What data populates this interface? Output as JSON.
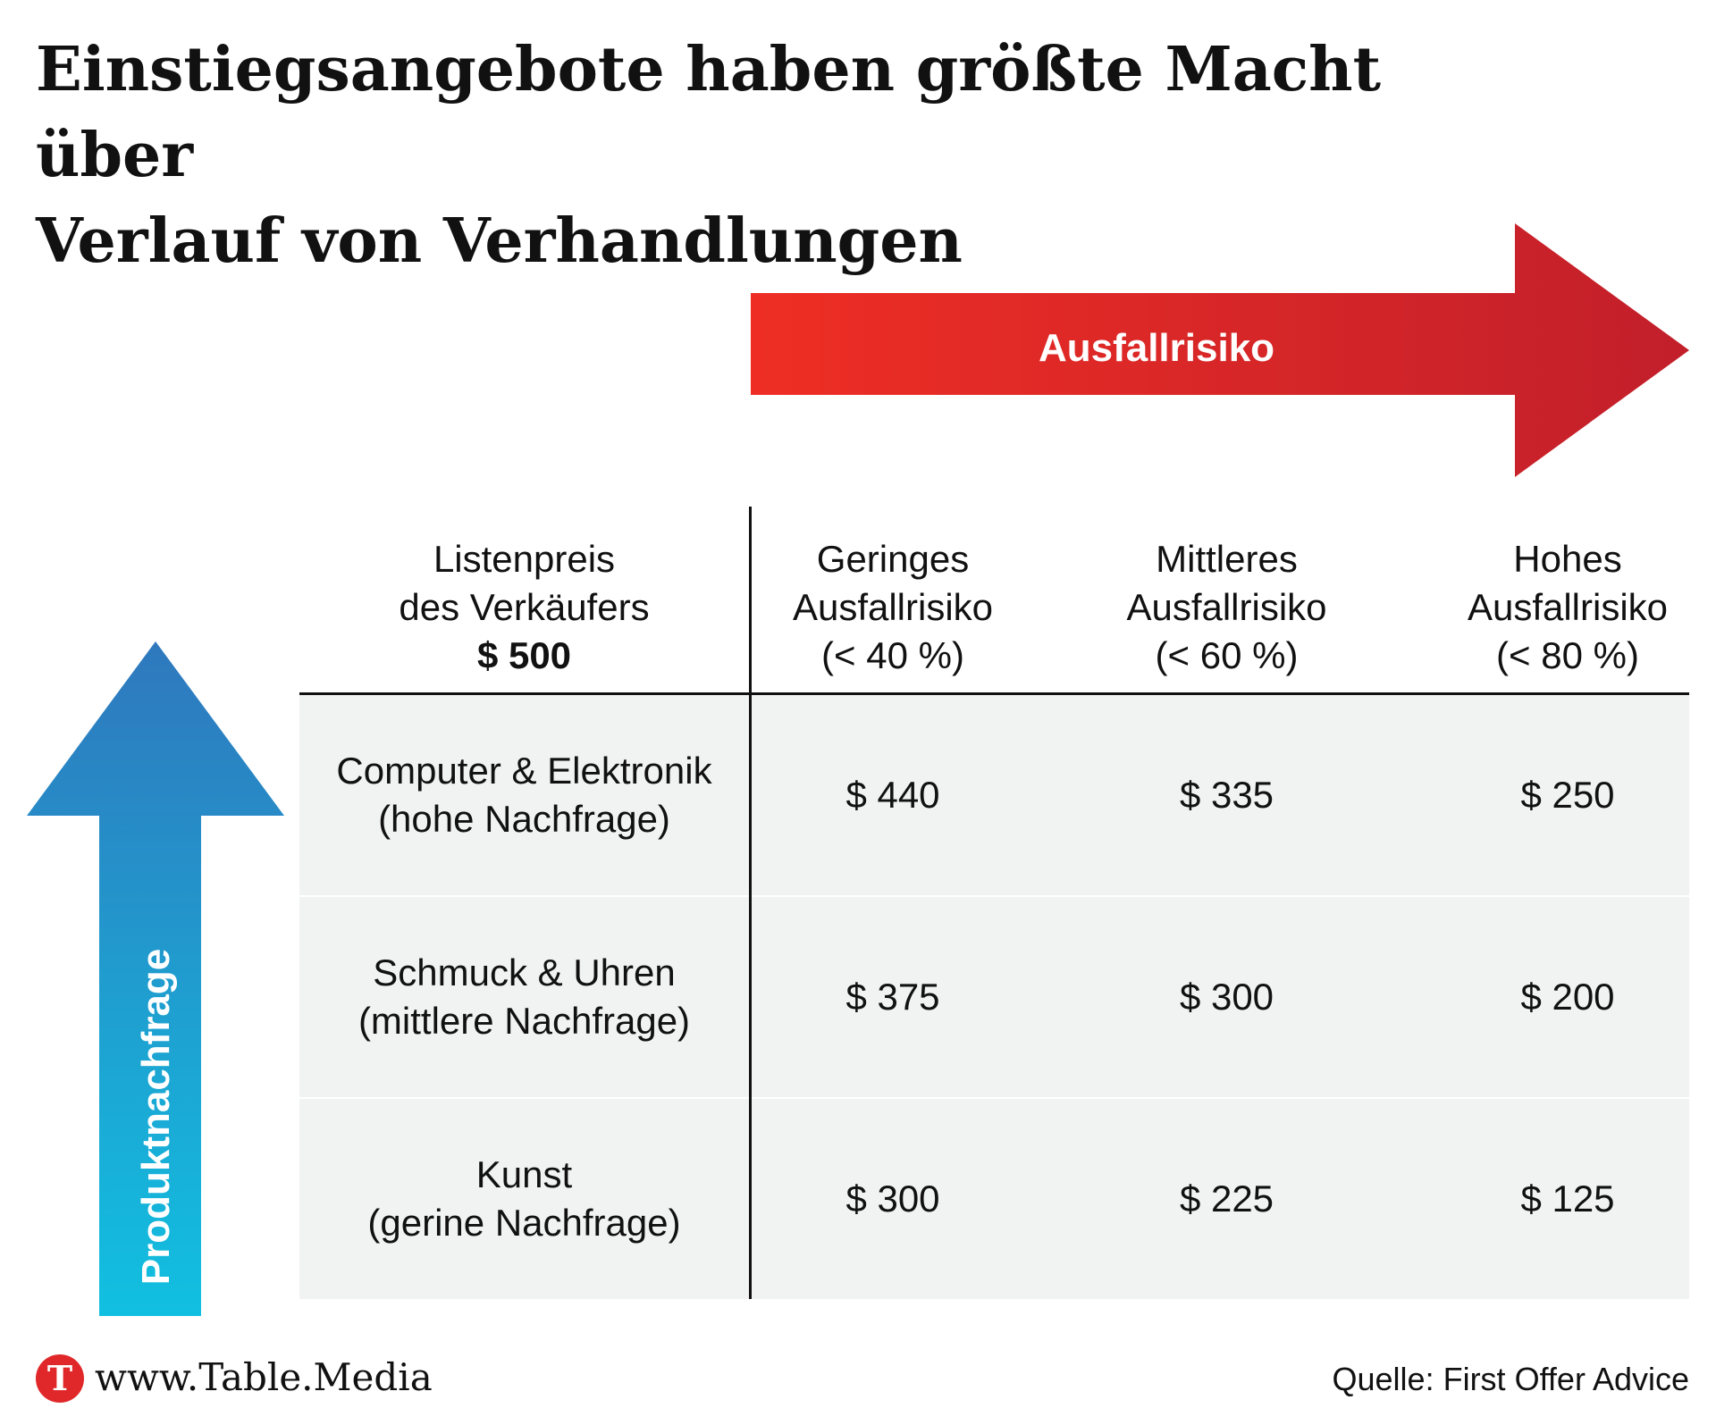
{
  "title": {
    "line1": "Einstiegsangebote haben größte Macht über",
    "line2": "Verlauf von Verhandlungen"
  },
  "risk_arrow": {
    "label": "Ausfallrisiko",
    "color_start": "#ee2e24",
    "color_end": "#c21f2b",
    "icon": "arrow-right-icon"
  },
  "demand_arrow": {
    "label": "Produktnachfrage",
    "color_top": "#2f78bd",
    "color_bottom": "#11c0e0",
    "icon": "arrow-up-icon"
  },
  "table": {
    "header": {
      "list_price": {
        "line1": "Listenpreis",
        "line2": "des Verkäufers",
        "value": "$ 500"
      },
      "columns": [
        {
          "line1": "Geringes",
          "line2": "Ausfallrisiko",
          "line3": "(< 40 %)"
        },
        {
          "line1": "Mittleres",
          "line2": "Ausfallrisiko",
          "line3": "(< 60 %)"
        },
        {
          "line1": "Hohes",
          "line2": "Ausfallrisiko",
          "line3": "(< 80 %)"
        }
      ]
    },
    "rows": [
      {
        "line1": "Computer & Elektronik",
        "line2": "(hohe Nachfrage)",
        "values": [
          "$ 440",
          "$ 335",
          "$ 250"
        ]
      },
      {
        "line1": "Schmuck & Uhren",
        "line2": "(mittlere Nachfrage)",
        "values": [
          "$ 375",
          "$ 300",
          "$ 200"
        ]
      },
      {
        "line1": "Kunst",
        "line2": "(gerine Nachfrage)",
        "values": [
          "$ 300",
          "$ 225",
          "$ 125"
        ]
      }
    ],
    "row_background": "#f1f3f2"
  },
  "footer": {
    "logo_letter": "T",
    "logo_color": "#e0282a",
    "url": "www.Table.Media",
    "source": "Quelle: First Offer Advice"
  }
}
